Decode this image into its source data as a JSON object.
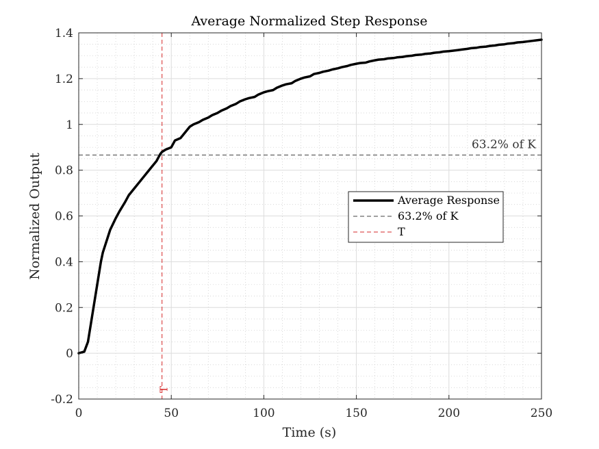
{
  "chart_data": {
    "type": "line",
    "title": "Average Normalized Step Response",
    "xlabel": "Time (s)",
    "ylabel": "Normalized Output",
    "xlim": [
      0,
      250
    ],
    "ylim": [
      -0.2,
      1.4
    ],
    "x_ticks": [
      0,
      50,
      100,
      150,
      200,
      250
    ],
    "x_tick_labels": [
      "0",
      "50",
      "100",
      "150",
      "200",
      "250"
    ],
    "y_ticks": [
      -0.2,
      0,
      0.2,
      0.4,
      0.6,
      0.8,
      1,
      1.2,
      1.4
    ],
    "y_tick_labels": [
      "-0.2",
      "0",
      "0.2",
      "0.4",
      "0.6",
      "0.8",
      "1",
      "1.2",
      "1.4"
    ],
    "grid": true,
    "minor_grid": true,
    "legend_position": "right-center",
    "series": [
      {
        "name": "Average Response",
        "color": "#000000",
        "style": "solid",
        "x": [
          0,
          2,
          3,
          5,
          7,
          9,
          10,
          12,
          13,
          15,
          17,
          20,
          22,
          25,
          27,
          30,
          32,
          35,
          37,
          40,
          42,
          44,
          45,
          47,
          50,
          52,
          55,
          57,
          60,
          62,
          65,
          67,
          70,
          72,
          75,
          77,
          80,
          82,
          85,
          87,
          90,
          92,
          95,
          97,
          100,
          102,
          105,
          107,
          110,
          112,
          115,
          117,
          120,
          122,
          125,
          127,
          130,
          132,
          135,
          137,
          140,
          142,
          145,
          147,
          150,
          152,
          155,
          157,
          160,
          162,
          165,
          167,
          170,
          172,
          175,
          177,
          180,
          182,
          185,
          187,
          190,
          192,
          195,
          197,
          200,
          202,
          205,
          207,
          210,
          212,
          215,
          217,
          220,
          222,
          225,
          227,
          230,
          232,
          235,
          237,
          240,
          242,
          245,
          247,
          250
        ],
        "y": [
          0.0,
          0.005,
          0.007,
          0.05,
          0.15,
          0.25,
          0.3,
          0.4,
          0.44,
          0.49,
          0.54,
          0.59,
          0.62,
          0.66,
          0.69,
          0.72,
          0.74,
          0.77,
          0.79,
          0.82,
          0.84,
          0.87,
          0.88,
          0.89,
          0.9,
          0.93,
          0.94,
          0.96,
          0.99,
          1.0,
          1.01,
          1.02,
          1.03,
          1.04,
          1.05,
          1.06,
          1.07,
          1.08,
          1.09,
          1.1,
          1.11,
          1.115,
          1.12,
          1.13,
          1.14,
          1.145,
          1.15,
          1.16,
          1.17,
          1.175,
          1.18,
          1.19,
          1.2,
          1.205,
          1.21,
          1.22,
          1.225,
          1.23,
          1.235,
          1.24,
          1.245,
          1.25,
          1.255,
          1.26,
          1.265,
          1.268,
          1.27,
          1.275,
          1.28,
          1.283,
          1.285,
          1.288,
          1.29,
          1.293,
          1.295,
          1.298,
          1.3,
          1.303,
          1.305,
          1.308,
          1.31,
          1.313,
          1.315,
          1.318,
          1.32,
          1.322,
          1.325,
          1.327,
          1.33,
          1.333,
          1.335,
          1.338,
          1.34,
          1.343,
          1.345,
          1.348,
          1.35,
          1.353,
          1.355,
          1.358,
          1.36,
          1.362,
          1.365,
          1.367,
          1.37
        ]
      },
      {
        "name": "63.2% of K",
        "color": "#404040",
        "style": "dashed",
        "y_constant": 0.866
      },
      {
        "name": "T",
        "color": "#d62728",
        "style": "dashed",
        "x_constant": 45
      }
    ],
    "annotations": [
      {
        "text": "63.2% of K",
        "x": 250,
        "y": 0.866,
        "anchor": "above-right"
      },
      {
        "text": "T",
        "x": 45,
        "y": -0.2,
        "anchor": "bottom-rotated"
      }
    ]
  }
}
